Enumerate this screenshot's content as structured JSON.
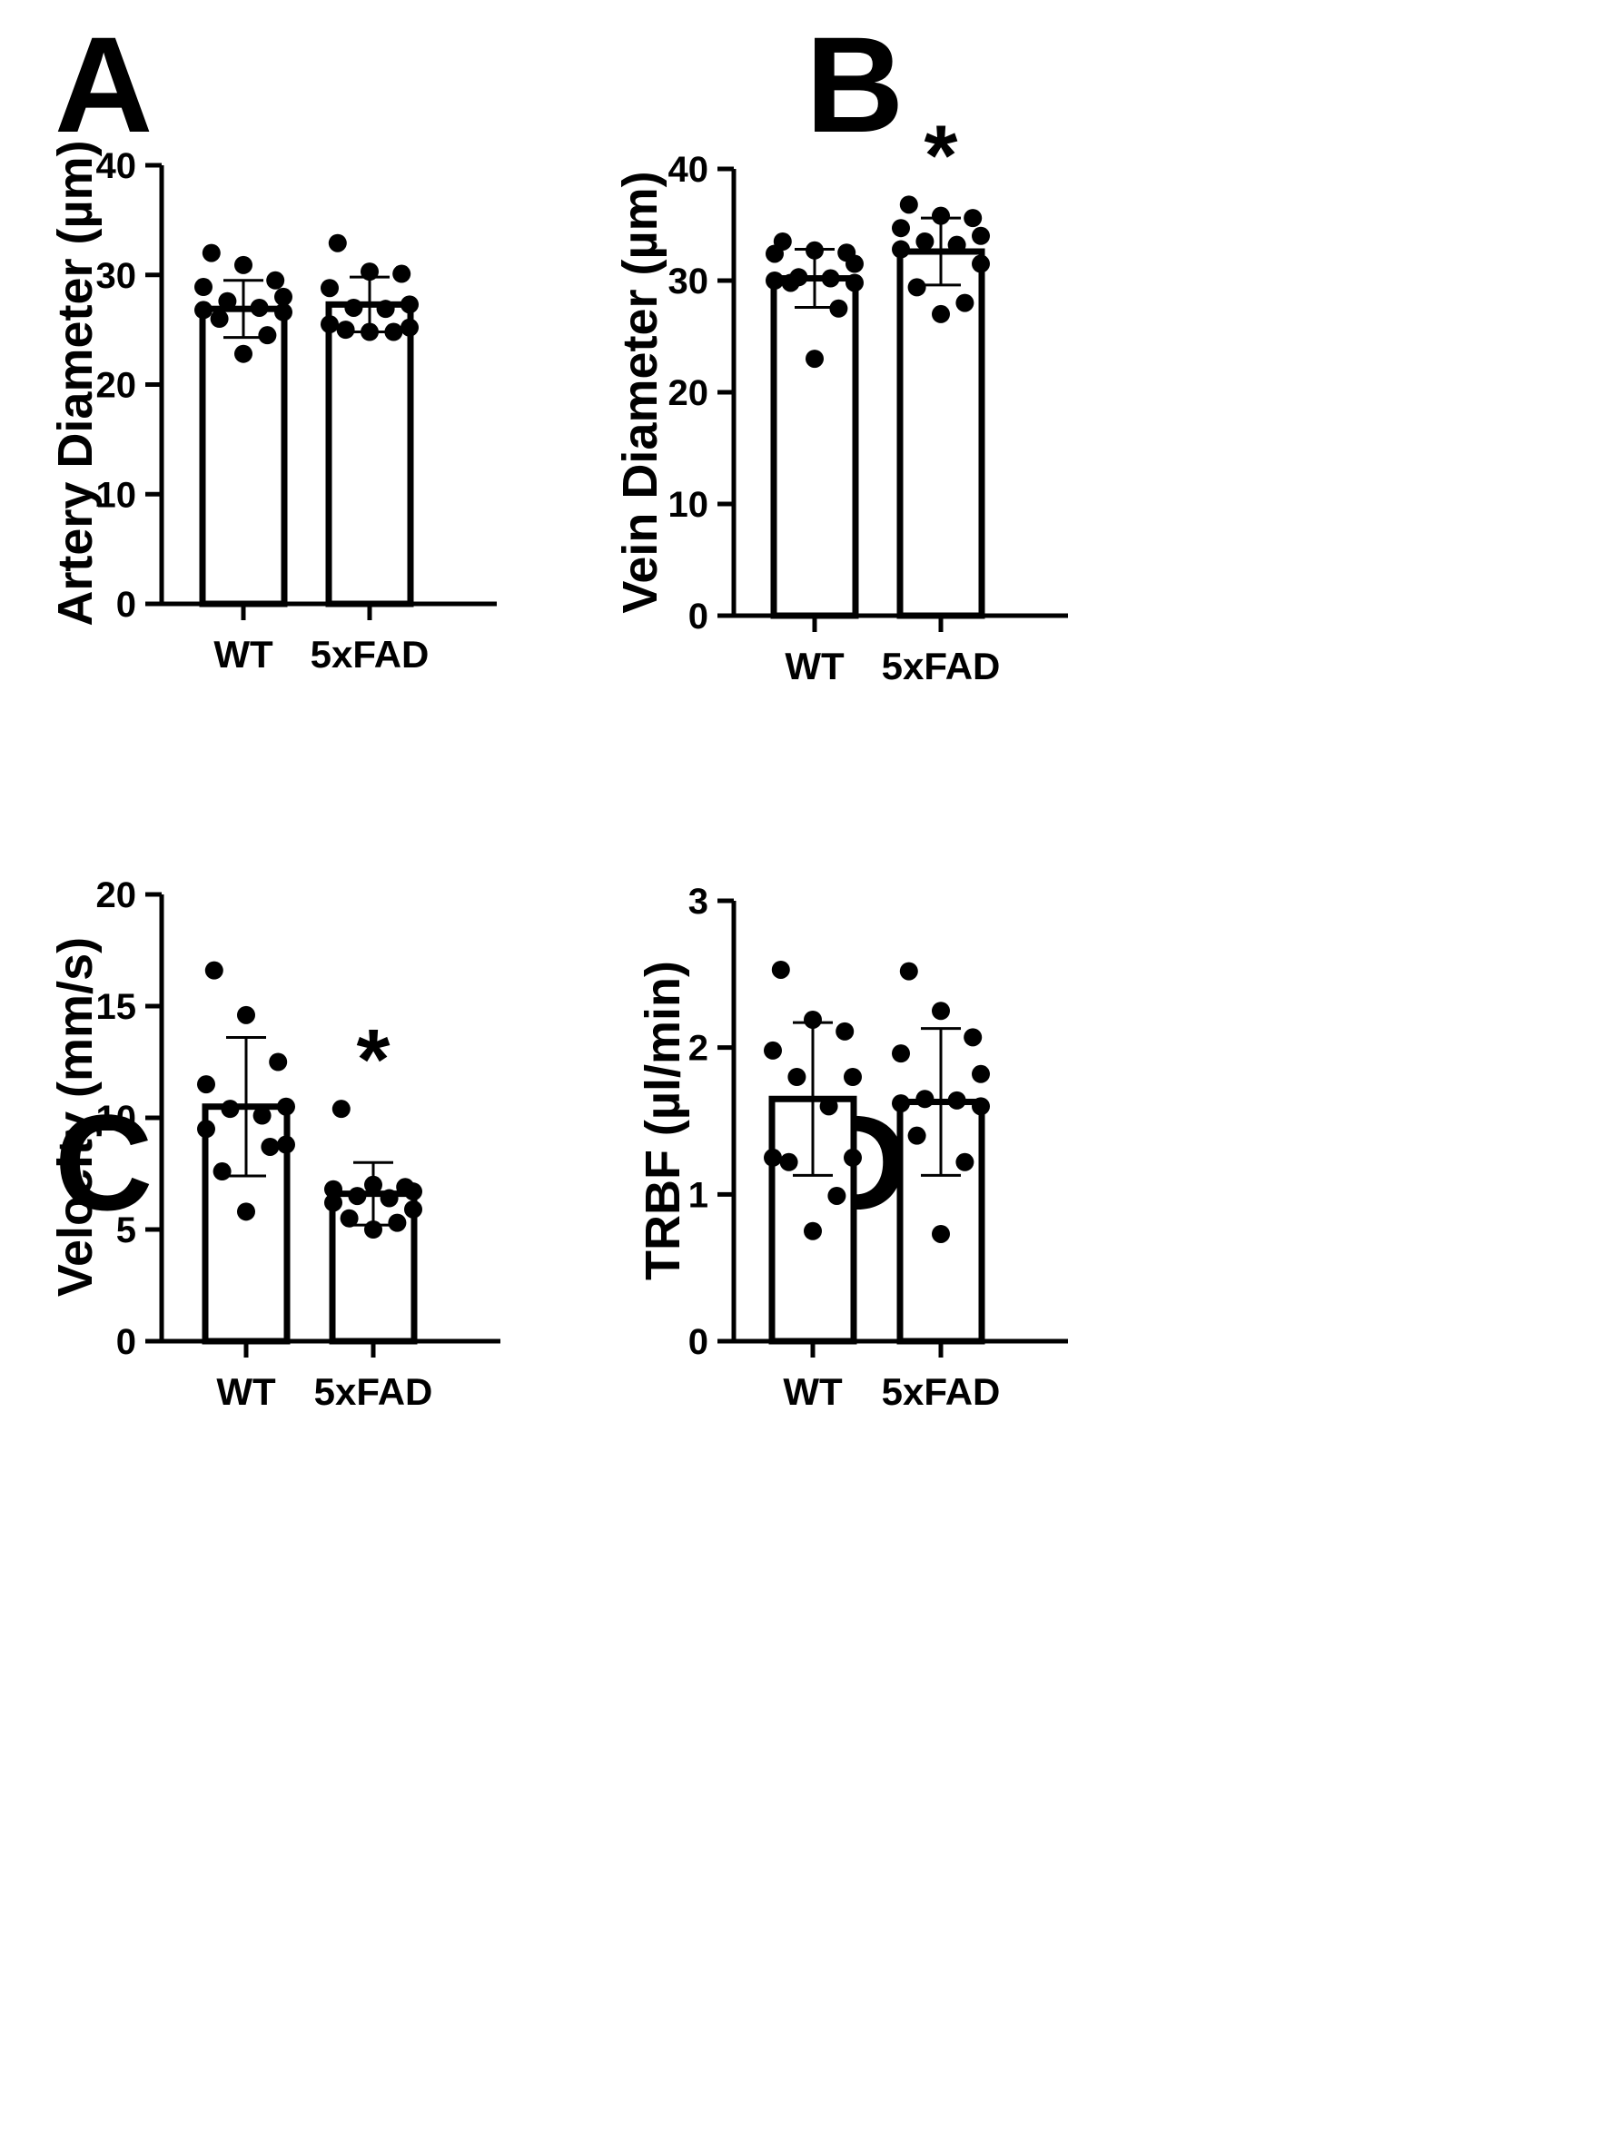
{
  "chart_data": [
    {
      "panel": "A",
      "type": "bar",
      "categories": [
        "WT",
        "5xFAD"
      ],
      "values": [
        26.9,
        27.3
      ],
      "error": [
        2.6,
        2.5
      ],
      "points": [
        [
          32.0,
          30.9,
          29.5,
          28.9,
          28.0,
          27.6,
          27.0,
          26.8,
          26.6,
          26.0,
          24.5,
          22.8
        ],
        [
          32.9,
          30.3,
          30.1,
          28.8,
          27.3,
          27.0,
          26.9,
          25.5,
          25.2,
          25.0,
          24.8,
          24.8
        ]
      ],
      "significance": [
        "",
        ""
      ],
      "title": "",
      "xlabel": "",
      "ylabel": "Artery Diameter (µm)",
      "ylim": [
        0,
        40
      ],
      "yticks": [
        0,
        10,
        20,
        30,
        40
      ]
    },
    {
      "panel": "B",
      "type": "bar",
      "categories": [
        "WT",
        "5xFAD"
      ],
      "values": [
        30.2,
        32.6
      ],
      "error": [
        2.6,
        3.0
      ],
      "points": [
        [
          33.5,
          32.7,
          32.5,
          32.4,
          31.5,
          30.3,
          30.2,
          30.0,
          29.8,
          29.8,
          27.5,
          23.0
        ],
        [
          36.8,
          35.8,
          35.6,
          34.7,
          34.0,
          33.5,
          33.2,
          32.8,
          31.5,
          29.4,
          28.0,
          27.0
        ]
      ],
      "significance": [
        "",
        "*"
      ],
      "title": "",
      "xlabel": "",
      "ylabel": "Vein Diameter (µm)",
      "ylim": [
        0,
        40
      ],
      "yticks": [
        0,
        10,
        20,
        30,
        40
      ]
    },
    {
      "panel": "C",
      "type": "bar",
      "categories": [
        "WT",
        "5xFAD"
      ],
      "values": [
        10.5,
        6.6
      ],
      "error": [
        3.1,
        1.4
      ],
      "points": [
        [
          16.6,
          14.6,
          12.5,
          11.5,
          10.5,
          10.4,
          10.1,
          9.5,
          8.8,
          7.6,
          8.7,
          5.8
        ],
        [
          10.4,
          7.0,
          6.9,
          6.8,
          6.7,
          6.5,
          6.4,
          6.2,
          5.9,
          5.5,
          5.3,
          5.0
        ]
      ],
      "significance": [
        "",
        "*"
      ],
      "title": "",
      "xlabel": "",
      "ylabel": "Velocity (mm/s)",
      "ylim": [
        0,
        20
      ],
      "yticks": [
        0,
        5,
        10,
        15,
        20
      ]
    },
    {
      "panel": "D",
      "type": "bar",
      "categories": [
        "WT",
        "5xFAD"
      ],
      "values": [
        1.65,
        1.63
      ],
      "error": [
        0.52,
        0.5
      ],
      "points": [
        [
          2.53,
          2.19,
          2.11,
          1.98,
          1.8,
          1.8,
          1.6,
          1.25,
          1.25,
          1.22,
          0.99,
          0.75
        ],
        [
          2.52,
          2.25,
          2.07,
          1.96,
          1.82,
          1.65,
          1.64,
          1.62,
          1.6,
          1.4,
          1.22,
          0.73
        ]
      ],
      "significance": [
        "",
        ""
      ],
      "title": "",
      "xlabel": "",
      "ylabel": "TRBF (µl/min)",
      "ylim": [
        0,
        3
      ],
      "yticks": [
        0,
        1,
        2,
        3
      ]
    }
  ]
}
